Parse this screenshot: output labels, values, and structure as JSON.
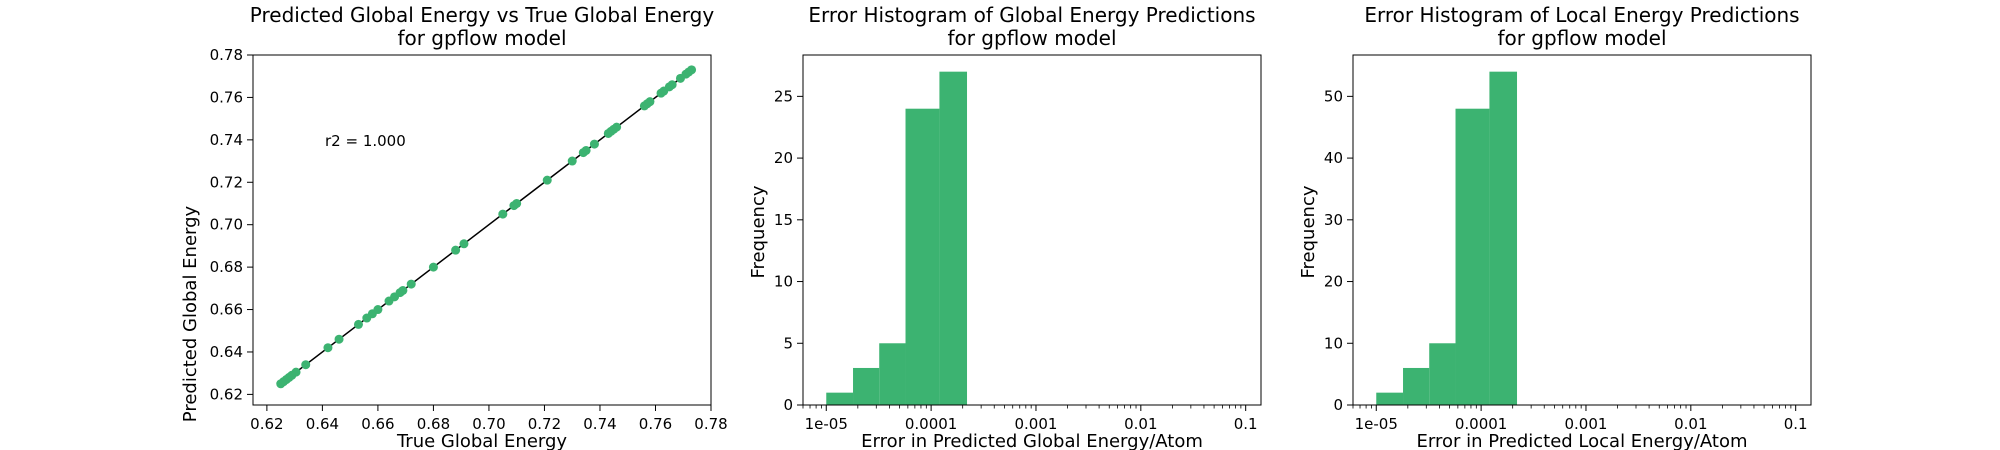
{
  "chart_data": [
    {
      "type": "scatter",
      "title": [
        "Predicted Global Energy vs True Global Energy",
        "for gpflow model"
      ],
      "xlabel": "True Global Energy",
      "ylabel": "Predicted Global Energy",
      "xlim": [
        0.615,
        0.78
      ],
      "ylim": [
        0.615,
        0.78
      ],
      "xticks": [
        "0.62",
        "0.64",
        "0.66",
        "0.68",
        "0.70",
        "0.72",
        "0.74",
        "0.76",
        "0.78"
      ],
      "yticks": [
        "0.62",
        "0.64",
        "0.66",
        "0.68",
        "0.70",
        "0.72",
        "0.74",
        "0.76",
        "0.78"
      ],
      "annotation": "r2 = 1.000",
      "identity_line": [
        [
          0.625,
          0.625
        ],
        [
          0.773,
          0.773
        ]
      ],
      "color": "#3cb371",
      "points": [
        [
          0.625,
          0.625
        ],
        [
          0.626,
          0.626
        ],
        [
          0.627,
          0.627
        ],
        [
          0.628,
          0.628
        ],
        [
          0.629,
          0.629
        ],
        [
          0.6305,
          0.6305
        ],
        [
          0.634,
          0.634
        ],
        [
          0.642,
          0.642
        ],
        [
          0.646,
          0.646
        ],
        [
          0.653,
          0.653
        ],
        [
          0.656,
          0.656
        ],
        [
          0.658,
          0.658
        ],
        [
          0.66,
          0.66
        ],
        [
          0.664,
          0.664
        ],
        [
          0.666,
          0.666
        ],
        [
          0.668,
          0.668
        ],
        [
          0.669,
          0.669
        ],
        [
          0.672,
          0.672
        ],
        [
          0.68,
          0.68
        ],
        [
          0.688,
          0.688
        ],
        [
          0.691,
          0.691
        ],
        [
          0.705,
          0.705
        ],
        [
          0.709,
          0.709
        ],
        [
          0.71,
          0.71
        ],
        [
          0.721,
          0.721
        ],
        [
          0.73,
          0.73
        ],
        [
          0.734,
          0.734
        ],
        [
          0.735,
          0.735
        ],
        [
          0.738,
          0.738
        ],
        [
          0.743,
          0.743
        ],
        [
          0.744,
          0.744
        ],
        [
          0.745,
          0.745
        ],
        [
          0.746,
          0.746
        ],
        [
          0.756,
          0.756
        ],
        [
          0.757,
          0.757
        ],
        [
          0.758,
          0.758
        ],
        [
          0.762,
          0.762
        ],
        [
          0.763,
          0.763
        ],
        [
          0.765,
          0.765
        ],
        [
          0.766,
          0.766
        ],
        [
          0.769,
          0.769
        ],
        [
          0.771,
          0.771
        ],
        [
          0.772,
          0.772
        ],
        [
          0.773,
          0.773
        ]
      ]
    },
    {
      "type": "bar",
      "title": [
        "Error Histogram of Global Energy Predictions",
        "for gpflow model"
      ],
      "xlabel": "Error in Predicted Global Energy/Atom",
      "ylabel": "Frequency",
      "xscale": "log",
      "xlim": [
        6e-06,
        0.14
      ],
      "ylim": [
        0,
        28.35
      ],
      "xticks": [
        {
          "value": 1e-05,
          "label": "1e-05"
        },
        {
          "value": 0.0001,
          "label": "0.0001"
        },
        {
          "value": 0.001,
          "label": "0.001"
        },
        {
          "value": 0.01,
          "label": "0.01"
        },
        {
          "value": 0.1,
          "label": "0.1"
        }
      ],
      "yticks": [
        0,
        5,
        10,
        15,
        20,
        25
      ],
      "color": "#3cb371",
      "bins": [
        {
          "x0": 1e-05,
          "x1": 1.8e-05,
          "count": 1
        },
        {
          "x0": 1.8e-05,
          "x1": 3.2e-05,
          "count": 3
        },
        {
          "x0": 3.2e-05,
          "x1": 5.7e-05,
          "count": 5
        },
        {
          "x0": 5.7e-05,
          "x1": 0.00012,
          "count": 24
        },
        {
          "x0": 0.00012,
          "x1": 0.00022,
          "count": 27
        }
      ]
    },
    {
      "type": "bar",
      "title": [
        "Error Histogram of Local Energy Predictions",
        "for gpflow model"
      ],
      "xlabel": "Error in Predicted Local Energy/Atom",
      "ylabel": "Frequency",
      "xscale": "log",
      "xlim": [
        6e-06,
        0.14
      ],
      "ylim": [
        0,
        56.7
      ],
      "xticks": [
        {
          "value": 1e-05,
          "label": "1e-05"
        },
        {
          "value": 0.0001,
          "label": "0.0001"
        },
        {
          "value": 0.001,
          "label": "0.001"
        },
        {
          "value": 0.01,
          "label": "0.01"
        },
        {
          "value": 0.1,
          "label": "0.1"
        }
      ],
      "yticks": [
        0,
        10,
        20,
        30,
        40,
        50
      ],
      "color": "#3cb371",
      "bins": [
        {
          "x0": 1e-05,
          "x1": 1.8e-05,
          "count": 2
        },
        {
          "x0": 1.8e-05,
          "x1": 3.2e-05,
          "count": 6
        },
        {
          "x0": 3.2e-05,
          "x1": 5.7e-05,
          "count": 10
        },
        {
          "x0": 5.7e-05,
          "x1": 0.00012,
          "count": 48
        },
        {
          "x0": 0.00012,
          "x1": 0.00022,
          "count": 54
        }
      ]
    }
  ]
}
